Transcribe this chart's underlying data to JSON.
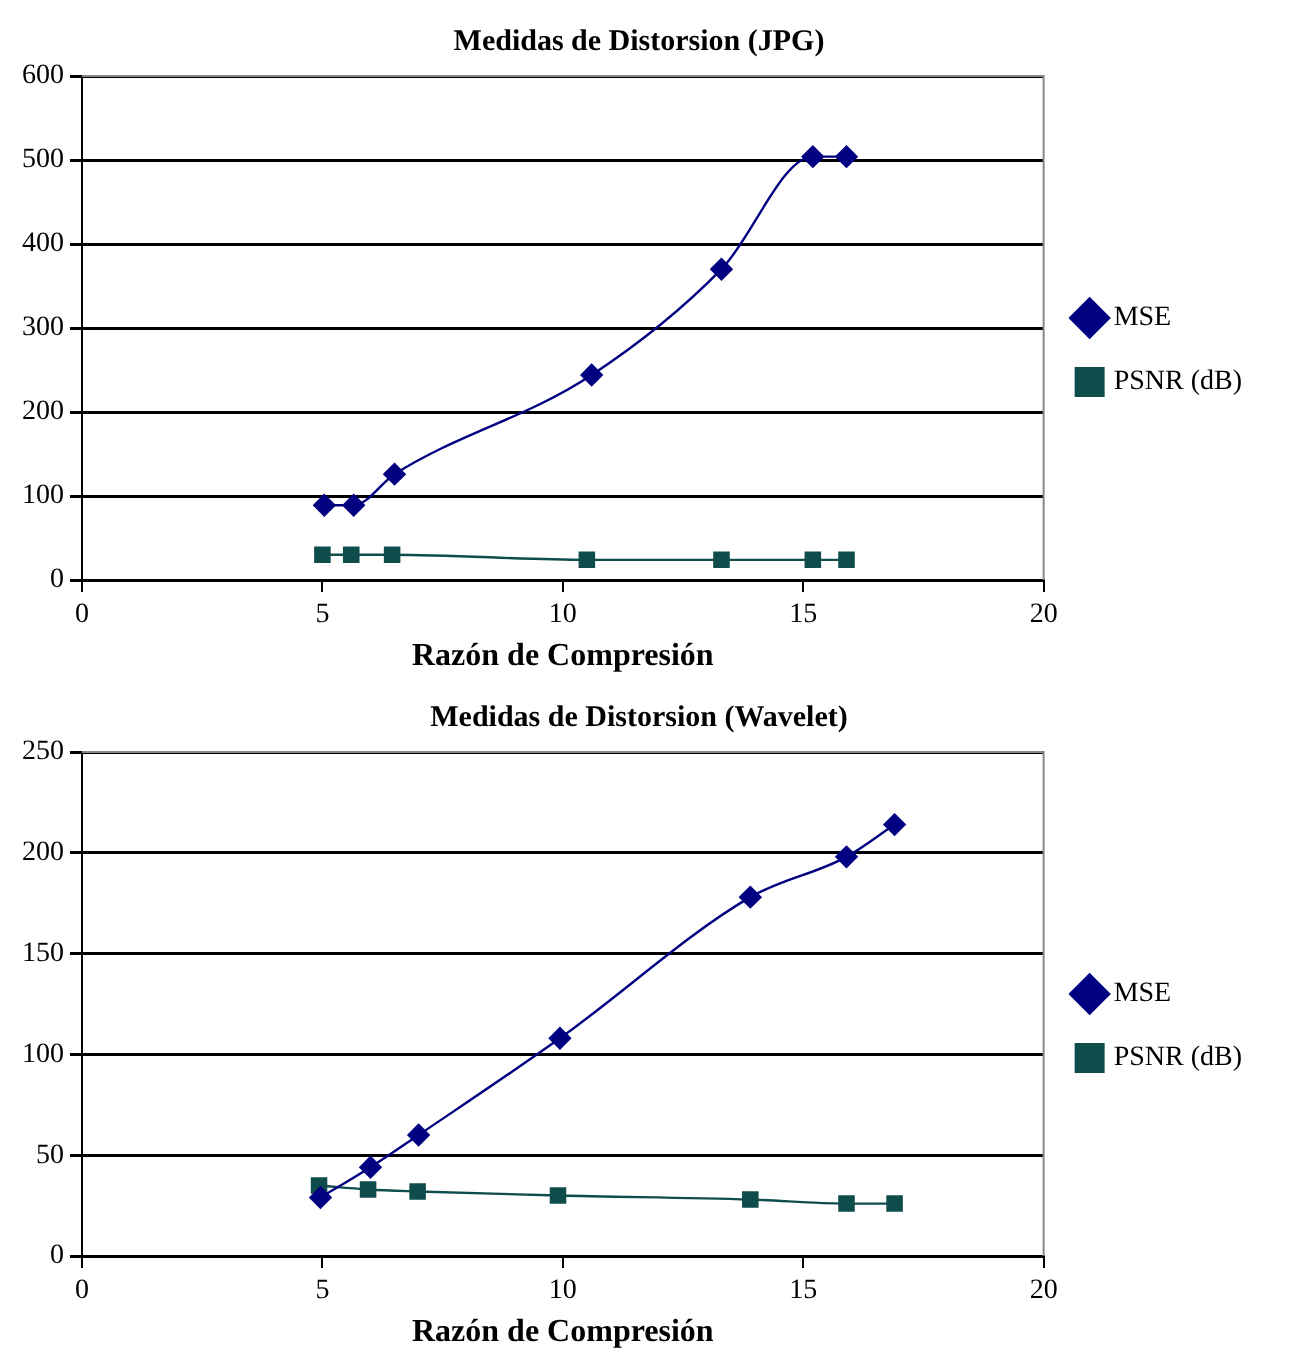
{
  "chart_data": [
    {
      "type": "line",
      "title": "Medidas de Distorsion (JPG)",
      "xlabel": "Razón de Compresión",
      "xlim": [
        0,
        20
      ],
      "xticks": [
        0,
        5,
        10,
        15,
        20
      ],
      "ylim": [
        0,
        600
      ],
      "yticks": [
        0,
        100,
        200,
        300,
        400,
        500,
        600
      ],
      "grid": "y",
      "legend": "right",
      "series": [
        {
          "name": "MSE",
          "color": "#000080",
          "marker": "diamond",
          "x": [
            5.04,
            5.65,
            6.5,
            10.6,
            13.3,
            15.2,
            15.9
          ],
          "values": [
            89,
            89,
            126,
            244,
            370,
            504,
            504
          ]
        },
        {
          "name": "PSNR (dB)",
          "color": "#0f4c4c",
          "marker": "square",
          "x": [
            5.0,
            5.6,
            6.45,
            10.5,
            13.3,
            15.2,
            15.9
          ],
          "values": [
            30,
            30,
            30,
            24,
            24,
            24,
            24
          ]
        }
      ]
    },
    {
      "type": "line",
      "title": "Medidas de Distorsion (Wavelet)",
      "xlabel": "Razón de Compresión",
      "xlim": [
        0,
        20
      ],
      "xticks": [
        0,
        5,
        10,
        15,
        20
      ],
      "ylim": [
        0,
        250
      ],
      "yticks": [
        0,
        50,
        100,
        150,
        200,
        250
      ],
      "grid": "y",
      "legend": "right",
      "series": [
        {
          "name": "MSE",
          "color": "#000080",
          "marker": "diamond",
          "x": [
            4.96,
            6.0,
            7.0,
            9.94,
            13.9,
            15.9,
            16.9
          ],
          "values": [
            29,
            44,
            60,
            108,
            178,
            198,
            214
          ]
        },
        {
          "name": "PSNR (dB)",
          "color": "#0f4c4c",
          "marker": "square",
          "x": [
            4.93,
            5.95,
            6.98,
            9.9,
            13.9,
            15.9,
            16.9
          ],
          "values": [
            35,
            33,
            32,
            30,
            28,
            26,
            26
          ]
        }
      ]
    }
  ]
}
